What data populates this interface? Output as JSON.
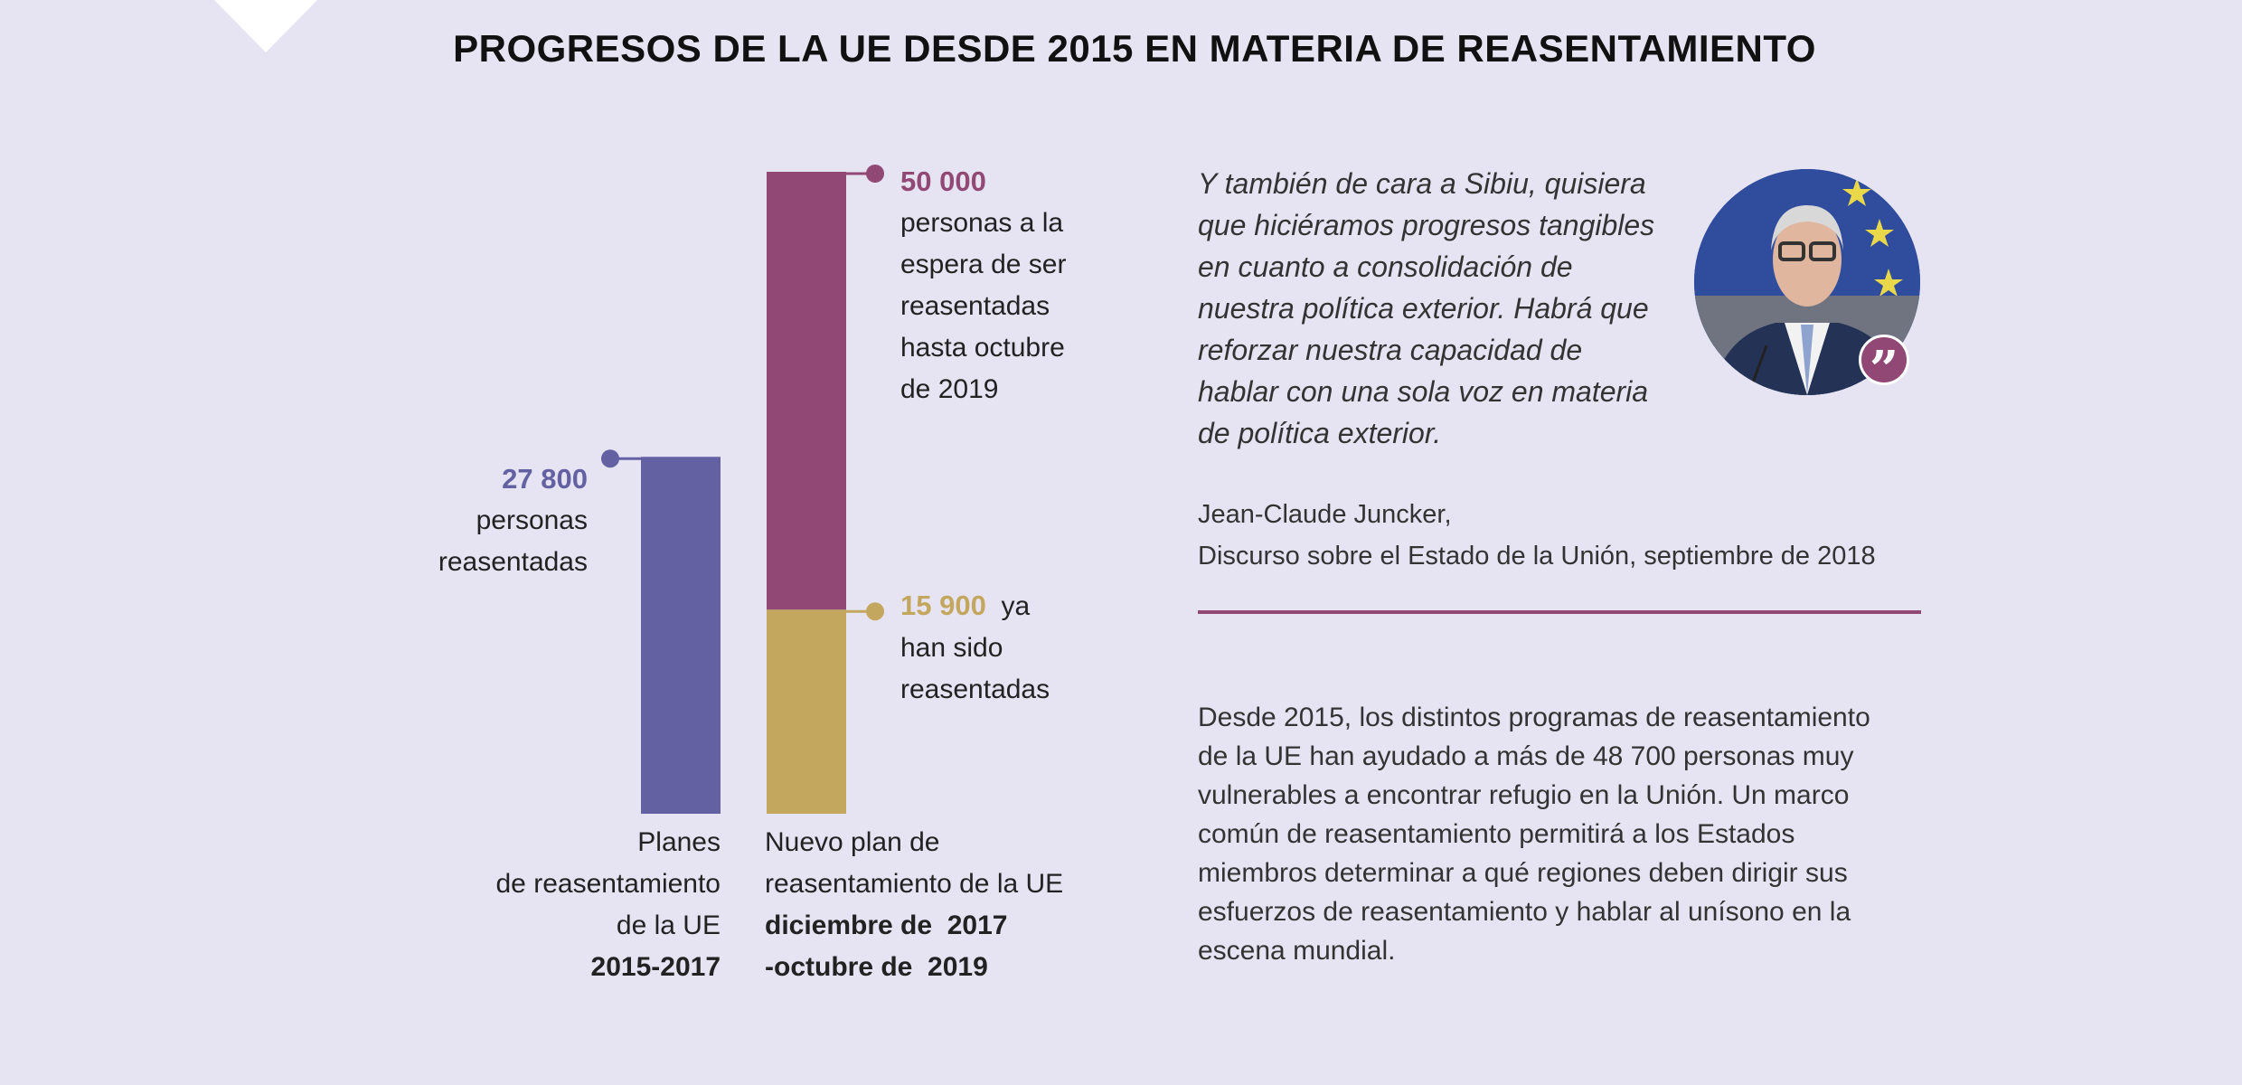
{
  "title": "PROGRESOS DE LA UE DESDE 2015 EN MATERIA DE REASENTAMIENTO",
  "colors": {
    "background": "#e6e4f2",
    "plan1": "#6461a3",
    "pending": "#924874",
    "resettled": "#c4a75e",
    "rule": "#924874"
  },
  "chart_data": {
    "type": "bar",
    "stacked": true,
    "categories": [
      "Planes de reasentamiento de la UE 2015-2017",
      "Nuevo plan de reasentamiento de la UE diciembre de 2017 -octubre de 2019"
    ],
    "bars": [
      {
        "total": 27800,
        "segments": [
          {
            "value": 27800,
            "color": "#6461a3"
          }
        ]
      },
      {
        "total": 50000,
        "segments": [
          {
            "value": 15900,
            "color": "#c4a75e"
          },
          {
            "value": 34100,
            "color": "#924874"
          }
        ]
      }
    ],
    "annotations": {
      "bar1_value": "27 800",
      "bar1_text": [
        "personas",
        "reasentadas"
      ],
      "bar2_value": "50 000",
      "bar2_text": [
        "personas a la",
        "espera de ser",
        "reasentadas",
        "hasta octubre",
        "de 2019"
      ],
      "bar2_part_value": "15 900",
      "bar2_part_text": [
        "ya",
        "han sido",
        "reasentadas"
      ]
    },
    "labels": {
      "bar1": [
        "Planes",
        "de reasentamiento",
        "de la UE",
        "2015-2017"
      ],
      "bar2": [
        "Nuevo plan de",
        "reasentamiento de la UE",
        "diciembre de  2017",
        "-octubre de  2019"
      ]
    },
    "ylim": [
      0,
      50000
    ],
    "grid": false
  },
  "quote": {
    "lines": [
      "Y también de cara a Sibiu, quisiera",
      "que hiciéramos progresos tangibles",
      "en cuanto a consolidación de",
      "nuestra política exterior. Habrá que",
      "reforzar nuestra capacidad de",
      "hablar con una sola voz en materia",
      "de política exterior."
    ],
    "author": "Jean-Claude Juncker,",
    "source": "Discurso sobre el Estado de la Unión, septiembre de 2018",
    "badge": "”"
  },
  "paragraph": [
    "Desde 2015, los distintos programas de reasentamiento",
    "de la UE han ayudado a más de 48 700 personas muy",
    "vulnerables a encontrar refugio en la Unión. Un marco",
    "común de reasentamiento permitirá a los Estados",
    "miembros determinar a qué regiones deben dirigir sus",
    "esfuerzos de reasentamiento y hablar al unísono en la",
    "escena mundial."
  ]
}
